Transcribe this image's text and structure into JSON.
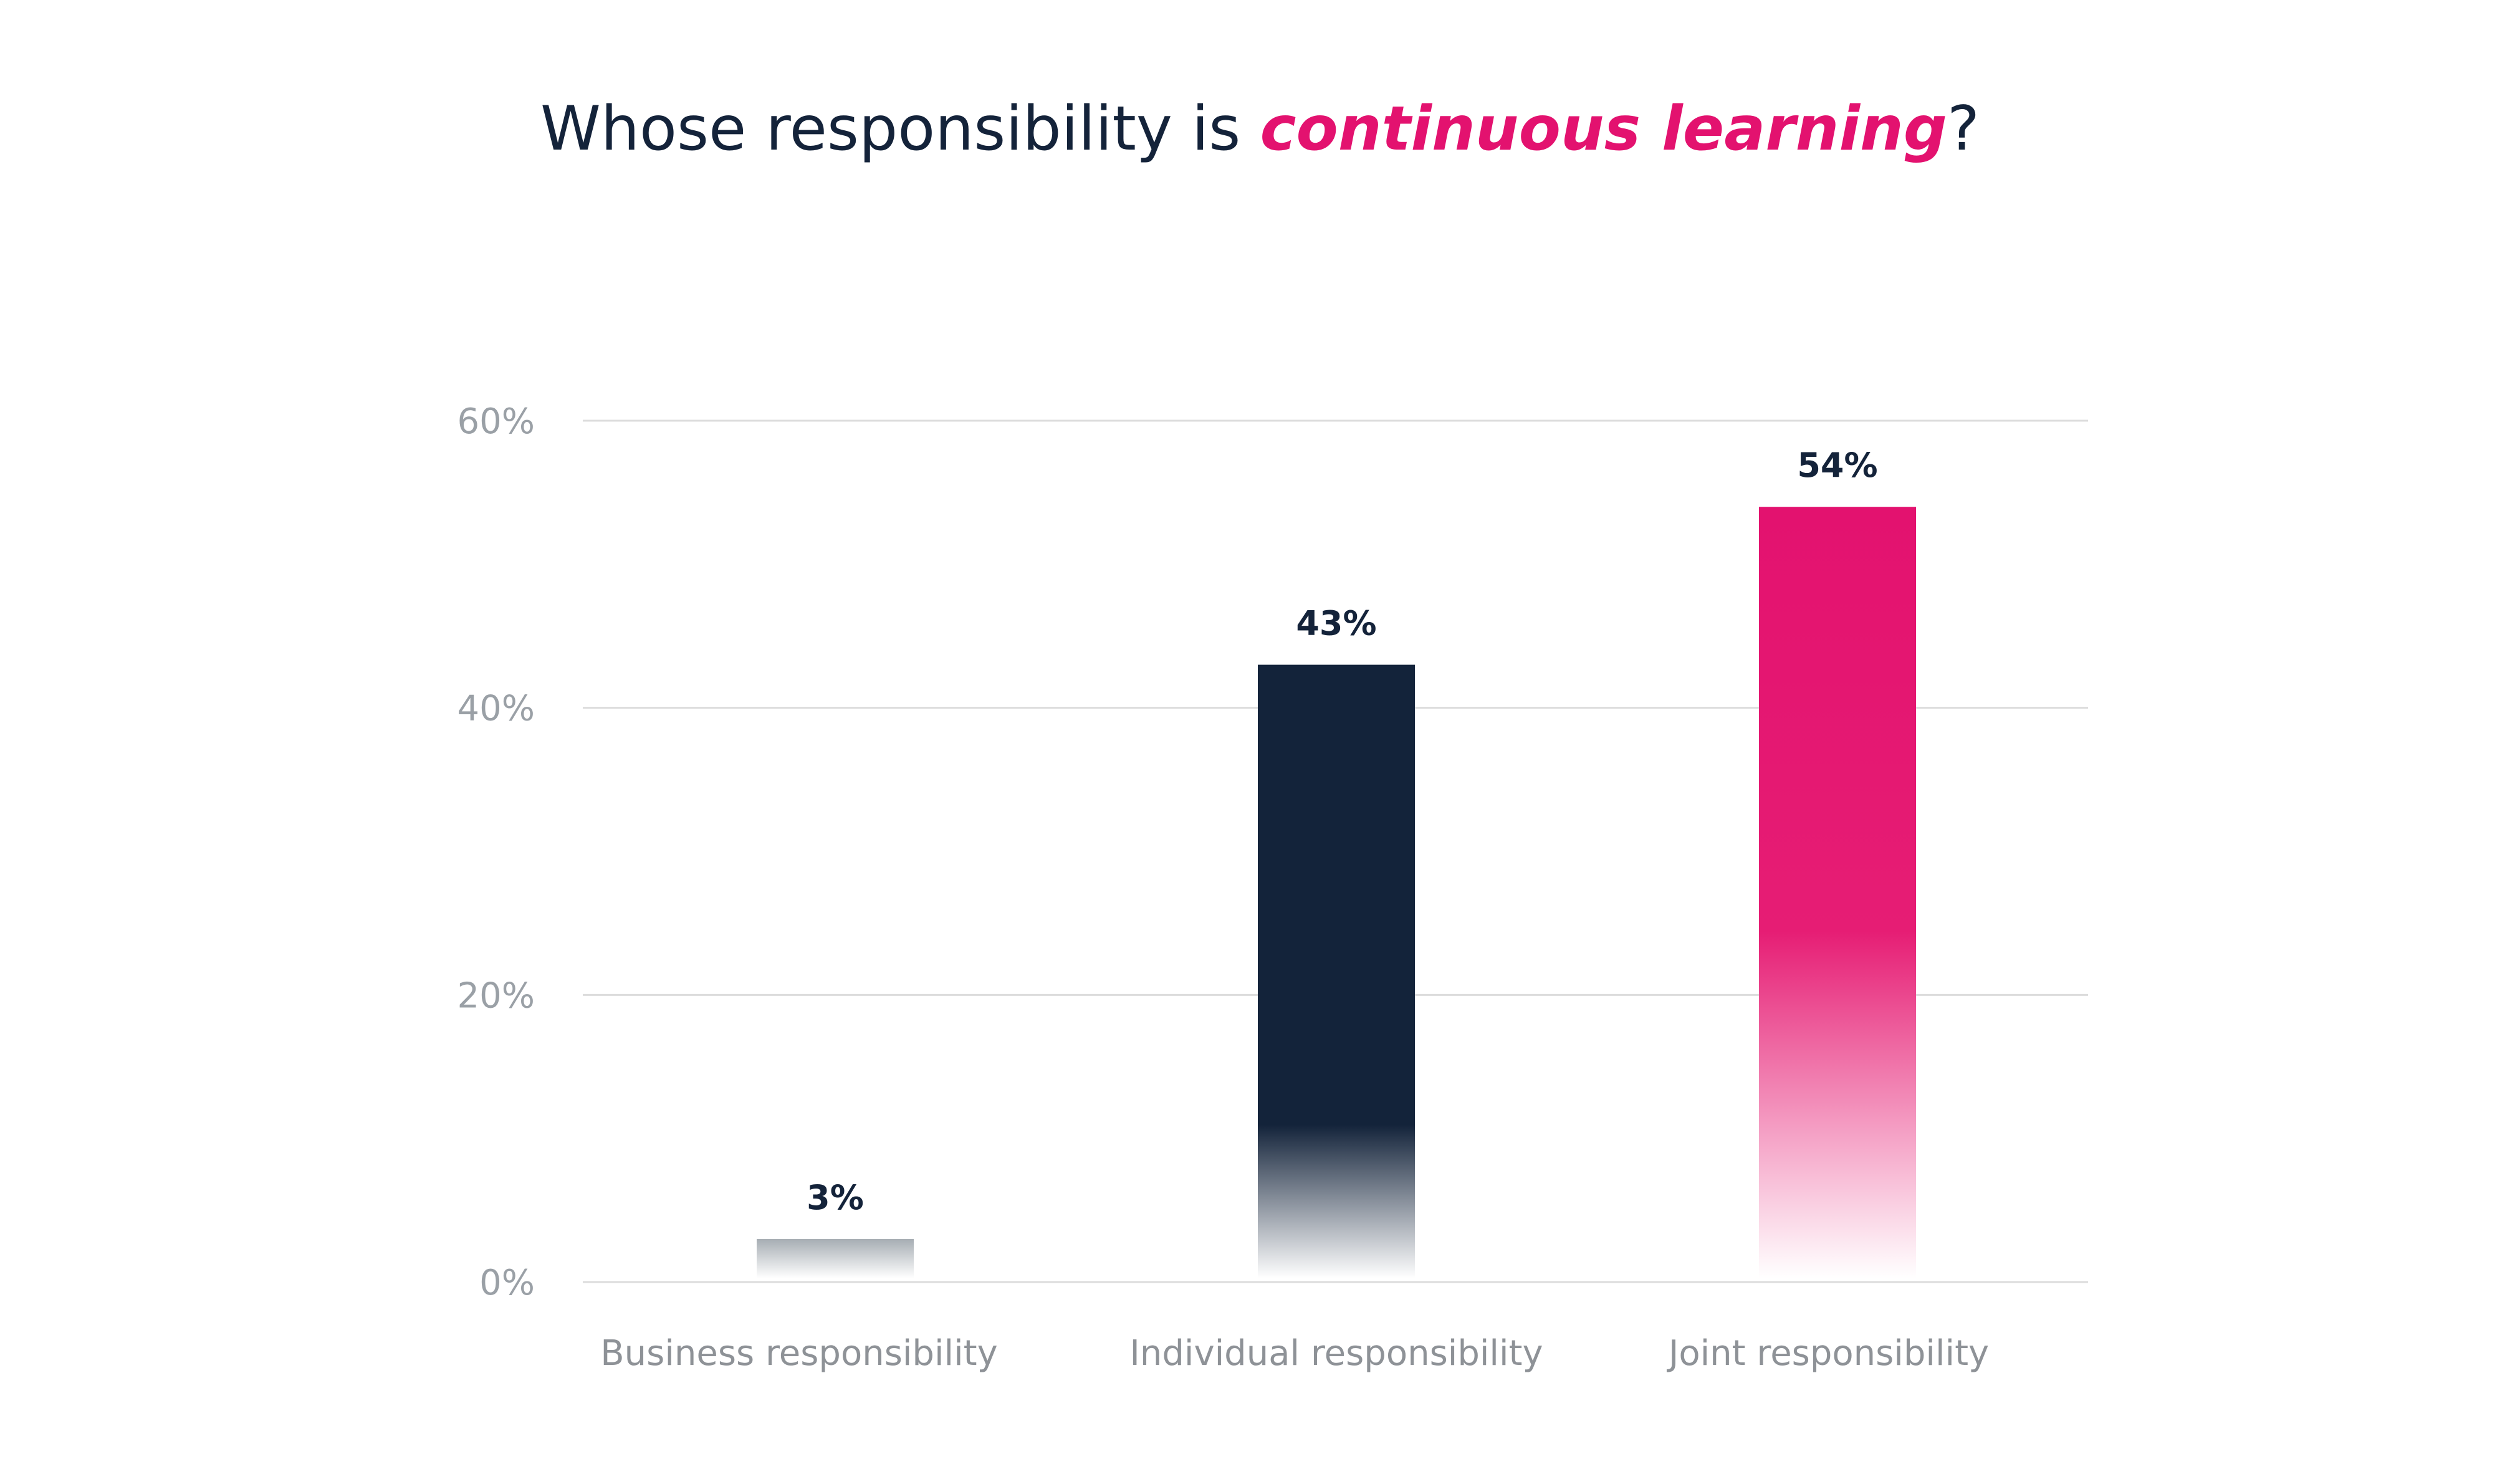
{
  "chart_data": {
    "type": "bar",
    "title": "Whose responsibility is continuous learning?",
    "title_parts": {
      "before": "Whose responsibility is ",
      "emphasis": "continuous learning",
      "after": "?"
    },
    "categories": [
      "Business responsibility",
      "Individual responsibility",
      "Joint responsibility"
    ],
    "values": [
      3,
      43,
      54
    ],
    "data_labels": [
      "3%",
      "43%",
      "54%"
    ],
    "y_ticks": [
      0,
      20,
      40,
      60
    ],
    "y_tick_labels": [
      "0%",
      "20%",
      "40%",
      "60%"
    ],
    "ylim": [
      0,
      60
    ],
    "xlabel": "",
    "ylabel": "",
    "grid": true,
    "legend": "none",
    "colors": {
      "business": "#a6adb3",
      "individual": "#13233a",
      "joint": "#e3126f",
      "grid": "#dcdcdc",
      "title": "#14233a",
      "emphasis": "#e3126f"
    }
  }
}
